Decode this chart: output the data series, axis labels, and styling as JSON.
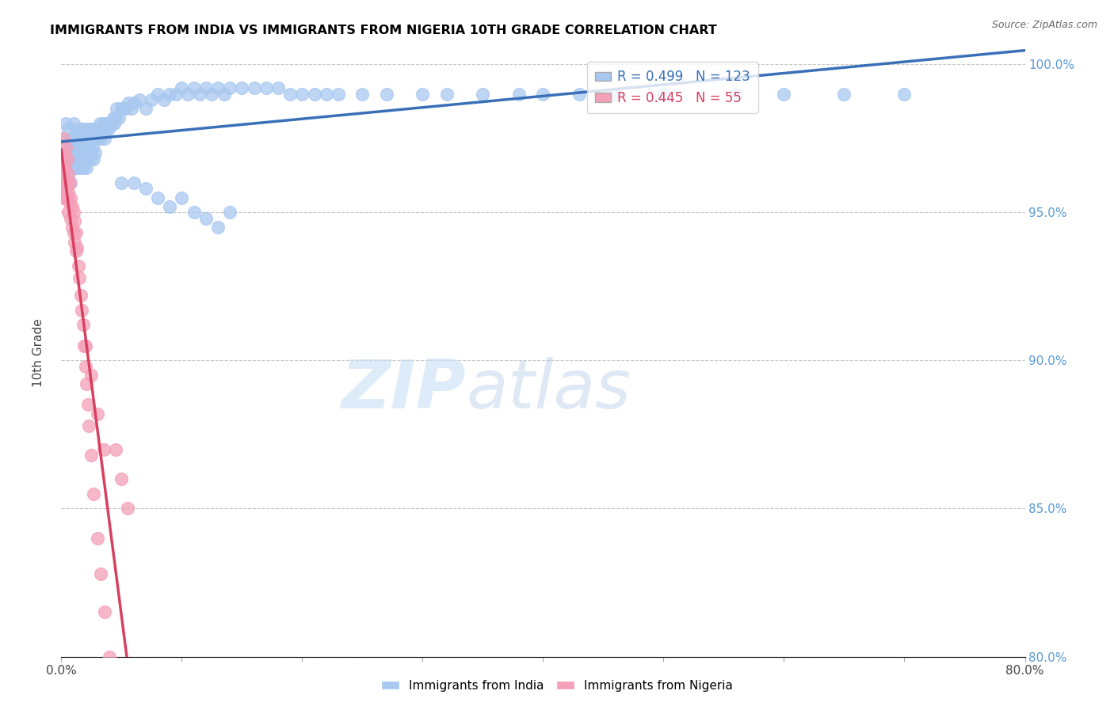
{
  "title": "IMMIGRANTS FROM INDIA VS IMMIGRANTS FROM NIGERIA 10TH GRADE CORRELATION CHART",
  "source_text": "Source: ZipAtlas.com",
  "ylabel": "10th Grade",
  "x_min": 0.0,
  "x_max": 0.8,
  "y_min": 0.8,
  "y_max": 1.005,
  "y_ticks": [
    0.8,
    0.85,
    0.9,
    0.95,
    1.0
  ],
  "y_tick_labels": [
    "80.0%",
    "85.0%",
    "90.0%",
    "95.0%",
    "100.0%"
  ],
  "india_R": 0.499,
  "india_N": 123,
  "nigeria_R": 0.445,
  "nigeria_N": 55,
  "india_color": "#a8c8f0",
  "nigeria_color": "#f4a0b8",
  "india_line_color": "#3a70b8",
  "nigeria_line_color": "#d84060",
  "legend_label_india": "Immigrants from India",
  "legend_label_nigeria": "Immigrants from Nigeria",
  "watermark_zip": "ZIP",
  "watermark_atlas": "atlas",
  "background_color": "#ffffff",
  "grid_color": "#c8c8c8",
  "title_color": "#000000",
  "right_axis_color": "#5b9bd5",
  "india_scatter_x": [
    0.002,
    0.003,
    0.004,
    0.004,
    0.005,
    0.005,
    0.006,
    0.006,
    0.007,
    0.007,
    0.008,
    0.008,
    0.009,
    0.009,
    0.01,
    0.01,
    0.01,
    0.011,
    0.011,
    0.012,
    0.012,
    0.013,
    0.013,
    0.014,
    0.014,
    0.015,
    0.015,
    0.016,
    0.016,
    0.017,
    0.017,
    0.018,
    0.018,
    0.019,
    0.019,
    0.02,
    0.02,
    0.021,
    0.021,
    0.022,
    0.022,
    0.023,
    0.024,
    0.024,
    0.025,
    0.025,
    0.026,
    0.027,
    0.027,
    0.028,
    0.029,
    0.03,
    0.031,
    0.032,
    0.033,
    0.034,
    0.035,
    0.036,
    0.037,
    0.038,
    0.039,
    0.04,
    0.042,
    0.043,
    0.044,
    0.045,
    0.046,
    0.048,
    0.05,
    0.052,
    0.054,
    0.056,
    0.058,
    0.06,
    0.065,
    0.07,
    0.075,
    0.08,
    0.085,
    0.09,
    0.095,
    0.1,
    0.105,
    0.11,
    0.115,
    0.12,
    0.125,
    0.13,
    0.135,
    0.14,
    0.15,
    0.16,
    0.17,
    0.18,
    0.19,
    0.2,
    0.21,
    0.22,
    0.23,
    0.25,
    0.27,
    0.3,
    0.32,
    0.35,
    0.38,
    0.4,
    0.43,
    0.46,
    0.5,
    0.56,
    0.6,
    0.65,
    0.7,
    0.05,
    0.06,
    0.07,
    0.08,
    0.09,
    0.1,
    0.11,
    0.12,
    0.13,
    0.14
  ],
  "india_scatter_y": [
    0.975,
    0.972,
    0.968,
    0.98,
    0.97,
    0.965,
    0.978,
    0.962,
    0.975,
    0.969,
    0.972,
    0.96,
    0.968,
    0.975,
    0.97,
    0.965,
    0.98,
    0.972,
    0.968,
    0.975,
    0.965,
    0.97,
    0.978,
    0.968,
    0.975,
    0.972,
    0.965,
    0.97,
    0.978,
    0.968,
    0.975,
    0.972,
    0.965,
    0.97,
    0.978,
    0.972,
    0.968,
    0.975,
    0.965,
    0.97,
    0.978,
    0.972,
    0.968,
    0.975,
    0.97,
    0.978,
    0.972,
    0.968,
    0.975,
    0.97,
    0.978,
    0.975,
    0.978,
    0.98,
    0.975,
    0.978,
    0.98,
    0.975,
    0.978,
    0.98,
    0.978,
    0.98,
    0.98,
    0.982,
    0.98,
    0.982,
    0.985,
    0.982,
    0.985,
    0.985,
    0.985,
    0.987,
    0.985,
    0.987,
    0.988,
    0.985,
    0.988,
    0.99,
    0.988,
    0.99,
    0.99,
    0.992,
    0.99,
    0.992,
    0.99,
    0.992,
    0.99,
    0.992,
    0.99,
    0.992,
    0.992,
    0.992,
    0.992,
    0.992,
    0.99,
    0.99,
    0.99,
    0.99,
    0.99,
    0.99,
    0.99,
    0.99,
    0.99,
    0.99,
    0.99,
    0.99,
    0.99,
    0.99,
    0.99,
    0.99,
    0.99,
    0.99,
    0.99,
    0.96,
    0.96,
    0.958,
    0.955,
    0.952,
    0.955,
    0.95,
    0.948,
    0.945,
    0.95
  ],
  "nigeria_scatter_x": [
    0.001,
    0.001,
    0.002,
    0.002,
    0.003,
    0.003,
    0.003,
    0.004,
    0.004,
    0.004,
    0.005,
    0.005,
    0.005,
    0.006,
    0.006,
    0.006,
    0.007,
    0.007,
    0.008,
    0.008,
    0.009,
    0.009,
    0.01,
    0.01,
    0.011,
    0.011,
    0.012,
    0.012,
    0.013,
    0.014,
    0.015,
    0.016,
    0.017,
    0.018,
    0.019,
    0.02,
    0.021,
    0.022,
    0.023,
    0.025,
    0.027,
    0.03,
    0.033,
    0.036,
    0.04,
    0.045,
    0.05,
    0.055,
    0.002,
    0.003,
    0.004,
    0.02,
    0.025,
    0.03,
    0.035
  ],
  "nigeria_scatter_y": [
    0.96,
    0.955,
    0.968,
    0.962,
    0.97,
    0.965,
    0.958,
    0.972,
    0.96,
    0.955,
    0.968,
    0.96,
    0.955,
    0.963,
    0.957,
    0.95,
    0.96,
    0.953,
    0.955,
    0.948,
    0.952,
    0.945,
    0.95,
    0.943,
    0.947,
    0.94,
    0.943,
    0.937,
    0.938,
    0.932,
    0.928,
    0.922,
    0.917,
    0.912,
    0.905,
    0.898,
    0.892,
    0.885,
    0.878,
    0.868,
    0.855,
    0.84,
    0.828,
    0.815,
    0.8,
    0.87,
    0.86,
    0.85,
    0.975,
    0.965,
    0.958,
    0.905,
    0.895,
    0.882,
    0.87
  ]
}
